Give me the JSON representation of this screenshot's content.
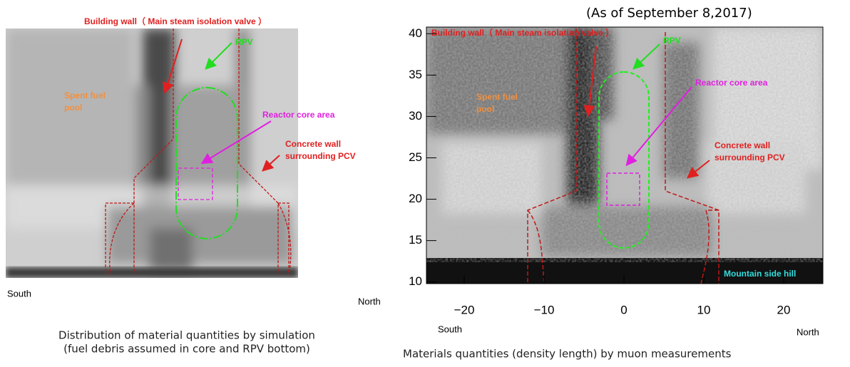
{
  "header": {
    "date_note": "(As of September 8,2017)"
  },
  "left_panel": {
    "labels": {
      "building_wall": "Building wall（ Main steam isolation valve ）",
      "rpv": "RPV",
      "spent_fuel_pool": [
        "Spent fuel",
        "pool"
      ],
      "reactor_core": "Reactor core area",
      "concrete_wall": [
        "Concrete wall",
        "surrounding PCV"
      ]
    },
    "south": "South",
    "north": "North",
    "caption": [
      "Distribution of material quantities by simulation",
      "(fuel debris assumed in core and RPV bottom)"
    ]
  },
  "right_panel": {
    "labels": {
      "building_wall": "Building wall（ Main steam isolation valve ）",
      "rpv": "RPV",
      "spent_fuel_pool": [
        "Spent fuel",
        "pool"
      ],
      "reactor_core": "Reactor core area",
      "concrete_wall": [
        "Concrete wall",
        "surrounding PCV"
      ],
      "mountain": "Mountain side hill"
    },
    "xlim": [
      -25,
      25
    ],
    "ylim": [
      9.8,
      40.8
    ],
    "xticks": [
      {
        "value": -20,
        "label": "−20"
      },
      {
        "value": -10,
        "label": "−10"
      },
      0,
      10,
      20
    ],
    "yticks": [
      10,
      15,
      20,
      25,
      30,
      35,
      40
    ],
    "south": "South",
    "north": "North",
    "caption": "Materials quantities (density length) by muon measurements"
  }
}
